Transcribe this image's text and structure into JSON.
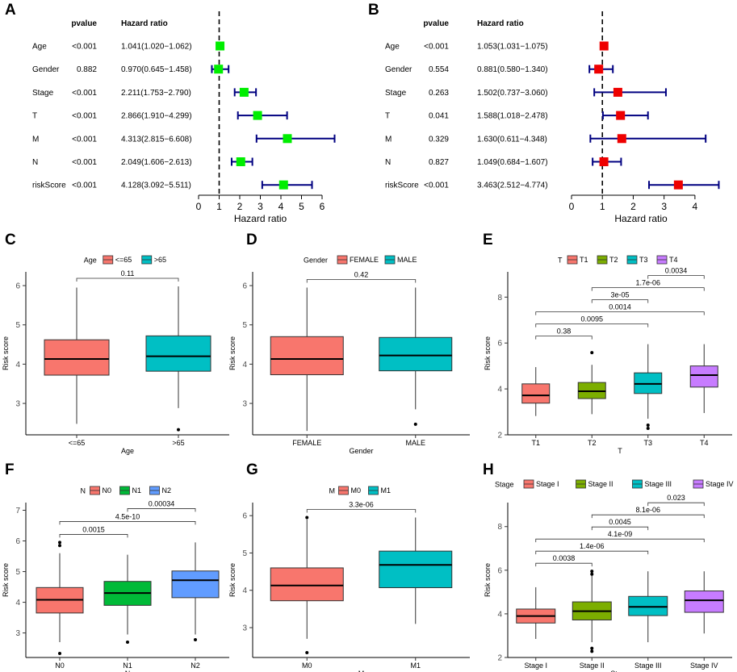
{
  "panels": {
    "A": "A",
    "B": "B",
    "C": "C",
    "D": "D",
    "E": "E",
    "F": "F",
    "G": "G",
    "H": "H"
  },
  "chart_data": [
    {
      "id": "A",
      "type": "forest",
      "header_p": "pvalue",
      "header_hr": "Hazard ratio",
      "xlabel": "Hazard ratio",
      "xlim": [
        0,
        6
      ],
      "xticks": [
        "0",
        "1",
        "2",
        "3",
        "4",
        "5",
        "6"
      ],
      "ref_line": 1,
      "marker_color": "#00ee00",
      "ci_color": "#000080",
      "rows": [
        {
          "label": "Age",
          "p": "<0.001",
          "hr_text": "1.041(1.020−1.062)",
          "hr": 1.041,
          "lo": 1.02,
          "hi": 1.062
        },
        {
          "label": "Gender",
          "p": "0.882",
          "hr_text": "0.970(0.645−1.458)",
          "hr": 0.97,
          "lo": 0.645,
          "hi": 1.458
        },
        {
          "label": "Stage",
          "p": "<0.001",
          "hr_text": "2.211(1.753−2.790)",
          "hr": 2.211,
          "lo": 1.753,
          "hi": 2.79
        },
        {
          "label": "T",
          "p": "<0.001",
          "hr_text": "2.866(1.910−4.299)",
          "hr": 2.866,
          "lo": 1.91,
          "hi": 4.299
        },
        {
          "label": "M",
          "p": "<0.001",
          "hr_text": "4.313(2.815−6.608)",
          "hr": 4.313,
          "lo": 2.815,
          "hi": 6.608
        },
        {
          "label": "N",
          "p": "<0.001",
          "hr_text": "2.049(1.606−2.613)",
          "hr": 2.049,
          "lo": 1.606,
          "hi": 2.613
        },
        {
          "label": "riskScore",
          "p": "<0.001",
          "hr_text": "4.128(3.092−5.511)",
          "hr": 4.128,
          "lo": 3.092,
          "hi": 5.511
        }
      ]
    },
    {
      "id": "B",
      "type": "forest",
      "header_p": "pvalue",
      "header_hr": "Hazard ratio",
      "xlabel": "Hazard ratio",
      "xlim": [
        0,
        4.5
      ],
      "xticks": [
        "0",
        "1",
        "2",
        "3",
        "4"
      ],
      "ref_line": 1,
      "marker_color": "#ee0000",
      "ci_color": "#000080",
      "rows": [
        {
          "label": "Age",
          "p": "<0.001",
          "hr_text": "1.053(1.031−1.075)",
          "hr": 1.053,
          "lo": 1.031,
          "hi": 1.075
        },
        {
          "label": "Gender",
          "p": "0.554",
          "hr_text": "0.881(0.580−1.340)",
          "hr": 0.881,
          "lo": 0.58,
          "hi": 1.34
        },
        {
          "label": "Stage",
          "p": "0.263",
          "hr_text": "1.502(0.737−3.060)",
          "hr": 1.502,
          "lo": 0.737,
          "hi": 3.06
        },
        {
          "label": "T",
          "p": "0.041",
          "hr_text": "1.588(1.018−2.478)",
          "hr": 1.588,
          "lo": 1.018,
          "hi": 2.478
        },
        {
          "label": "M",
          "p": "0.329",
          "hr_text": "1.630(0.611−4.348)",
          "hr": 1.63,
          "lo": 0.611,
          "hi": 4.348
        },
        {
          "label": "N",
          "p": "0.827",
          "hr_text": "1.049(0.684−1.607)",
          "hr": 1.049,
          "lo": 0.684,
          "hi": 1.607
        },
        {
          "label": "riskScore",
          "p": "<0.001",
          "hr_text": "3.463(2.512−4.774)",
          "hr": 3.463,
          "lo": 2.512,
          "hi": 4.774
        }
      ]
    },
    {
      "id": "C",
      "type": "boxplot",
      "legend_title": "Age",
      "xlabel": "Age",
      "ylabel": "Risk score",
      "ylim": [
        2.2,
        6.35
      ],
      "yticks": [
        3,
        4,
        5,
        6
      ],
      "groups": [
        {
          "name": "<=65",
          "color": "#f8766d",
          "q1": 3.72,
          "med": 4.13,
          "q3": 4.62,
          "wlo": 2.48,
          "whi": 5.95,
          "out": []
        },
        {
          "name": ">65",
          "color": "#00bfc4",
          "q1": 3.82,
          "med": 4.2,
          "q3": 4.72,
          "wlo": 2.88,
          "whi": 5.98,
          "out": [
            2.33
          ]
        }
      ],
      "comparisons": [
        {
          "a": 0,
          "b": 1,
          "label": "0.11",
          "level": 0
        }
      ]
    },
    {
      "id": "D",
      "type": "boxplot",
      "legend_title": "Gender",
      "xlabel": "Gender",
      "ylabel": "Risk score",
      "ylim": [
        2.2,
        6.35
      ],
      "yticks": [
        3,
        4,
        5,
        6
      ],
      "groups": [
        {
          "name": "FEMALE",
          "color": "#f8766d",
          "q1": 3.73,
          "med": 4.13,
          "q3": 4.7,
          "wlo": 2.3,
          "whi": 5.95,
          "out": []
        },
        {
          "name": "MALE",
          "color": "#00bfc4",
          "q1": 3.83,
          "med": 4.22,
          "q3": 4.68,
          "wlo": 2.85,
          "whi": 5.95,
          "out": [
            2.47
          ]
        }
      ],
      "comparisons": [
        {
          "a": 0,
          "b": 1,
          "label": "0.42",
          "level": 0
        }
      ]
    },
    {
      "id": "E",
      "type": "boxplot",
      "legend_title": "T",
      "xlabel": "T",
      "ylabel": "Risk score",
      "ylim": [
        2,
        9.1
      ],
      "yticks": [
        2,
        4,
        6,
        8
      ],
      "groups": [
        {
          "name": "T1",
          "color": "#f8766d",
          "q1": 3.38,
          "med": 3.72,
          "q3": 4.22,
          "wlo": 2.82,
          "whi": 4.95,
          "out": []
        },
        {
          "name": "T2",
          "color": "#7cae00",
          "q1": 3.58,
          "med": 3.9,
          "q3": 4.28,
          "wlo": 2.9,
          "whi": 5.05,
          "out": [
            5.58
          ]
        },
        {
          "name": "T3",
          "color": "#00bfc4",
          "q1": 3.8,
          "med": 4.22,
          "q3": 4.7,
          "wlo": 2.7,
          "whi": 5.95,
          "out": [
            2.42,
            2.28
          ]
        },
        {
          "name": "T4",
          "color": "#c77cff",
          "q1": 4.08,
          "med": 4.6,
          "q3": 5.0,
          "wlo": 2.95,
          "whi": 5.95,
          "out": []
        }
      ],
      "comparisons": [
        {
          "a": 0,
          "b": 1,
          "label": "0.38",
          "level": 0
        },
        {
          "a": 0,
          "b": 2,
          "label": "0.0095",
          "level": 1
        },
        {
          "a": 0,
          "b": 3,
          "label": "0.0014",
          "level": 2
        },
        {
          "a": 1,
          "b": 2,
          "label": "3e-05",
          "level": 3
        },
        {
          "a": 1,
          "b": 3,
          "label": "1.7e-06",
          "level": 4
        },
        {
          "a": 2,
          "b": 3,
          "label": "0.0034",
          "level": 5
        }
      ]
    },
    {
      "id": "F",
      "type": "boxplot",
      "legend_title": "N",
      "xlabel": "N",
      "ylabel": "Risk score",
      "ylim": [
        2.2,
        7.25
      ],
      "yticks": [
        3,
        4,
        5,
        6,
        7
      ],
      "groups": [
        {
          "name": "N0",
          "color": "#f8766d",
          "q1": 3.65,
          "med": 4.08,
          "q3": 4.48,
          "wlo": 2.7,
          "whi": 5.6,
          "out": [
            5.95,
            5.85,
            2.33
          ]
        },
        {
          "name": "N1",
          "color": "#00ba38",
          "q1": 3.9,
          "med": 4.3,
          "q3": 4.68,
          "wlo": 2.95,
          "whi": 5.55,
          "out": [
            2.7
          ]
        },
        {
          "name": "N2",
          "color": "#619cff",
          "q1": 4.15,
          "med": 4.72,
          "q3": 5.02,
          "wlo": 2.95,
          "whi": 5.95,
          "out": [
            2.78
          ]
        }
      ],
      "comparisons": [
        {
          "a": 0,
          "b": 1,
          "label": "0.0015",
          "level": 0
        },
        {
          "a": 0,
          "b": 2,
          "label": "4.5e-10",
          "level": 1
        },
        {
          "a": 1,
          "b": 2,
          "label": "0.00034",
          "level": 2
        }
      ]
    },
    {
      "id": "G",
      "type": "boxplot",
      "legend_title": "M",
      "xlabel": "M",
      "ylabel": "Risk score",
      "ylim": [
        2.2,
        6.35
      ],
      "yticks": [
        3,
        4,
        5,
        6
      ],
      "groups": [
        {
          "name": "M0",
          "color": "#f8766d",
          "q1": 3.72,
          "med": 4.13,
          "q3": 4.6,
          "wlo": 2.7,
          "whi": 5.9,
          "out": [
            5.95,
            2.33
          ]
        },
        {
          "name": "M1",
          "color": "#00bfc4",
          "q1": 4.07,
          "med": 4.68,
          "q3": 5.05,
          "wlo": 3.1,
          "whi": 5.95,
          "out": []
        }
      ],
      "comparisons": [
        {
          "a": 0,
          "b": 1,
          "label": "3.3e-06",
          "level": 0
        }
      ]
    },
    {
      "id": "H",
      "type": "boxplot",
      "legend_title": "Stage",
      "xlabel": "Stage",
      "ylabel": "Risk score",
      "ylim": [
        2,
        9.1
      ],
      "yticks": [
        2,
        4,
        6,
        8
      ],
      "groups": [
        {
          "name": "Stage I",
          "color": "#f8766d",
          "q1": 3.58,
          "med": 3.9,
          "q3": 4.22,
          "wlo": 2.85,
          "whi": 5.22,
          "out": []
        },
        {
          "name": "Stage II",
          "color": "#7cae00",
          "q1": 3.72,
          "med": 4.12,
          "q3": 4.55,
          "wlo": 2.7,
          "whi": 5.75,
          "out": [
            5.95,
            5.82,
            2.42,
            2.28
          ]
        },
        {
          "name": "Stage III",
          "color": "#00bfc4",
          "q1": 3.92,
          "med": 4.32,
          "q3": 4.8,
          "wlo": 2.7,
          "whi": 5.95,
          "out": []
        },
        {
          "name": "Stage IV",
          "color": "#c77cff",
          "q1": 4.07,
          "med": 4.62,
          "q3": 5.05,
          "wlo": 3.1,
          "whi": 5.95,
          "out": []
        }
      ],
      "comparisons": [
        {
          "a": 0,
          "b": 1,
          "label": "0.0038",
          "level": 0
        },
        {
          "a": 0,
          "b": 2,
          "label": "1.4e-06",
          "level": 1
        },
        {
          "a": 0,
          "b": 3,
          "label": "4.1e-09",
          "level": 2
        },
        {
          "a": 1,
          "b": 2,
          "label": "0.0045",
          "level": 3
        },
        {
          "a": 1,
          "b": 3,
          "label": "8.1e-06",
          "level": 4
        },
        {
          "a": 2,
          "b": 3,
          "label": "0.023",
          "level": 5
        }
      ]
    }
  ]
}
